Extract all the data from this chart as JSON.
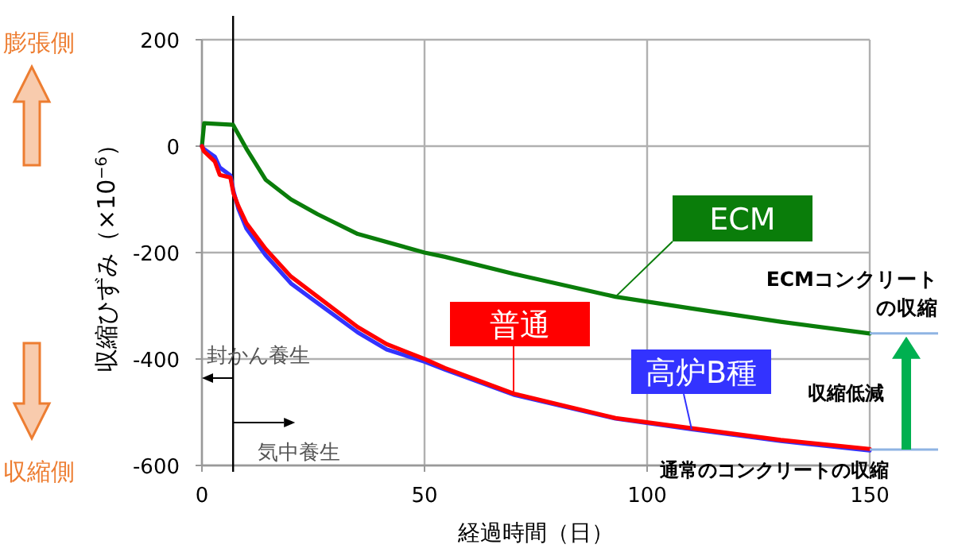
{
  "chart_data": {
    "type": "line",
    "xlabel": "経過時間（日）",
    "ylabel": "収縮ひずみ（×10$^{−6}$）",
    "xlim": [
      0,
      150
    ],
    "ylim": [
      -600,
      200
    ],
    "xticks": [
      0,
      50,
      100,
      150
    ],
    "yticks": [
      -600,
      -400,
      -200,
      0,
      200
    ],
    "grid": true,
    "marker": "none",
    "line_style": "solid",
    "series": [
      {
        "name": "ECM",
        "color": "#0a7d0a",
        "x": [
          0,
          0.5,
          7,
          8,
          10,
          14.3,
          20,
          26,
          35,
          50,
          54.6,
          70,
          92.9,
          110,
          130,
          150
        ],
        "values": [
          0,
          43,
          40,
          25,
          -5,
          -63,
          -100,
          -128,
          -165,
          -200,
          -208,
          -240,
          -283,
          -305,
          -330,
          -352
        ]
      },
      {
        "name": "高炉B種",
        "color": "#3333ff",
        "x": [
          0,
          0.4,
          2.9,
          4,
          6.4,
          7.1,
          8.2,
          10,
          14.3,
          20,
          26,
          35,
          41.5,
          50,
          54.6,
          70,
          92.9,
          110,
          130,
          150
        ],
        "values": [
          0,
          -5,
          -20,
          -40,
          -55,
          -85,
          -118,
          -155,
          -205,
          -258,
          -295,
          -350,
          -382,
          -405,
          -420,
          -467,
          -512,
          -532,
          -554,
          -572
        ]
      },
      {
        "name": "普通",
        "color": "#ff0000",
        "x": [
          0,
          0.4,
          2.9,
          4,
          6.4,
          7.1,
          8.2,
          10,
          14.3,
          20,
          26,
          35,
          41.5,
          50,
          54.6,
          70,
          92.9,
          110,
          130,
          150
        ],
        "values": [
          0,
          -9,
          -29,
          -54,
          -59,
          -89,
          -113,
          -145,
          -193,
          -245,
          -283,
          -340,
          -372,
          -400,
          -417,
          -465,
          -511,
          -530,
          -552,
          -569
        ]
      }
    ],
    "ref_lines": [
      {
        "axis": "x",
        "value": 7,
        "color": "#000000"
      }
    ],
    "annotations": [
      {
        "text": "ECMコンクリートの収縮",
        "x": 150,
        "y": -352
      },
      {
        "text": "通常のコンクリートの収縮",
        "x": 150,
        "y": -570
      },
      "収縮低減",
      "膨張側",
      "収縮側",
      "封かん養生",
      "気中養生"
    ]
  }
}
